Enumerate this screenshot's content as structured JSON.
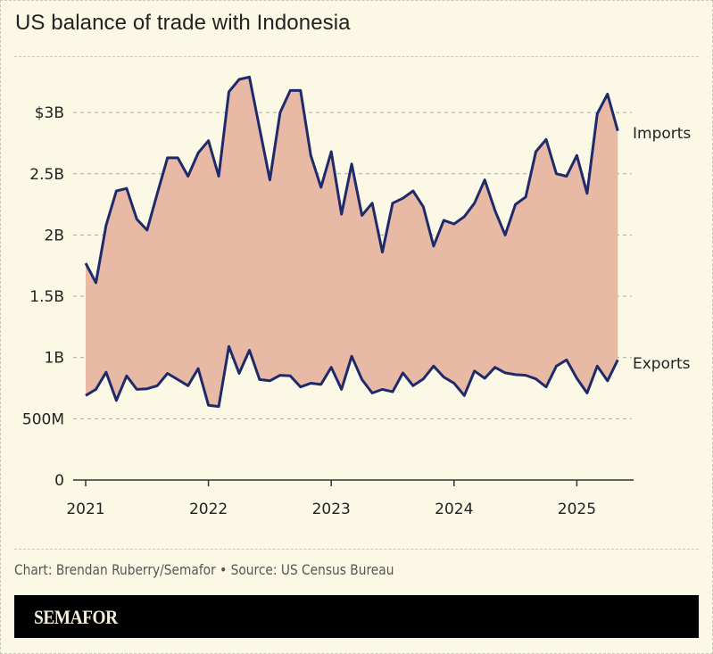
{
  "title": "US balance of trade with Indonesia",
  "source": "Chart: Brendan Ruberry/Semafor • Source: US Census Bureau",
  "brand": "SEMAFOR",
  "colors": {
    "background": "#fbf9e6",
    "line": "#1f2a6b",
    "area_fill": "#e8b9a4",
    "grid": "#aaa59a",
    "brand_bar": "#000000"
  },
  "chart_data": {
    "type": "area",
    "title": "US balance of trade with Indonesia",
    "xlabel": "",
    "ylabel": "",
    "ylim": [
      0,
      3.3
    ],
    "yticks": [
      0,
      0.5,
      1,
      1.5,
      2,
      2.5,
      3
    ],
    "ytick_labels": [
      "0",
      "500M",
      "1B",
      "1.5B",
      "2B",
      "2.5B",
      "$3B"
    ],
    "xtick_labels": [
      "2021",
      "2022",
      "2023",
      "2024",
      "2025"
    ],
    "grid": true,
    "units": "USD billions (monthly)",
    "x": [
      "2021-01",
      "2021-02",
      "2021-03",
      "2021-04",
      "2021-05",
      "2021-06",
      "2021-07",
      "2021-08",
      "2021-09",
      "2021-10",
      "2021-11",
      "2021-12",
      "2022-01",
      "2022-02",
      "2022-03",
      "2022-04",
      "2022-05",
      "2022-06",
      "2022-07",
      "2022-08",
      "2022-09",
      "2022-10",
      "2022-11",
      "2022-12",
      "2023-01",
      "2023-02",
      "2023-03",
      "2023-04",
      "2023-05",
      "2023-06",
      "2023-07",
      "2023-08",
      "2023-09",
      "2023-10",
      "2023-11",
      "2023-12",
      "2024-01",
      "2024-02",
      "2024-03",
      "2024-04",
      "2024-05",
      "2024-06",
      "2024-07",
      "2024-08",
      "2024-09",
      "2024-10",
      "2024-11",
      "2024-12",
      "2025-01",
      "2025-02",
      "2025-03",
      "2025-04",
      "2025-05"
    ],
    "series": [
      {
        "name": "Imports",
        "values": [
          1.77,
          1.61,
          2.08,
          2.36,
          2.38,
          2.13,
          2.04,
          2.34,
          2.63,
          2.63,
          2.48,
          2.67,
          2.77,
          2.48,
          3.17,
          3.27,
          3.29,
          2.87,
          2.45,
          3.0,
          3.18,
          3.18,
          2.65,
          2.39,
          2.68,
          2.17,
          2.58,
          2.16,
          2.26,
          1.86,
          2.26,
          2.3,
          2.36,
          2.23,
          1.91,
          2.12,
          2.09,
          2.15,
          2.26,
          2.45,
          2.2,
          2.0,
          2.25,
          2.31,
          2.68,
          2.78,
          2.5,
          2.48,
          2.65,
          2.34,
          2.99,
          3.15,
          2.85
        ]
      },
      {
        "name": "Exports",
        "values": [
          0.69,
          0.74,
          0.88,
          0.65,
          0.85,
          0.74,
          0.745,
          0.77,
          0.87,
          0.82,
          0.77,
          0.91,
          0.61,
          0.6,
          1.09,
          0.87,
          1.06,
          0.82,
          0.81,
          0.855,
          0.85,
          0.76,
          0.79,
          0.78,
          0.92,
          0.74,
          1.01,
          0.82,
          0.71,
          0.74,
          0.72,
          0.875,
          0.77,
          0.825,
          0.93,
          0.84,
          0.79,
          0.69,
          0.89,
          0.83,
          0.92,
          0.875,
          0.86,
          0.855,
          0.825,
          0.76,
          0.93,
          0.98,
          0.83,
          0.71,
          0.93,
          0.81,
          0.98
        ]
      }
    ],
    "legend_position": "direct labels at line ends (right)"
  }
}
